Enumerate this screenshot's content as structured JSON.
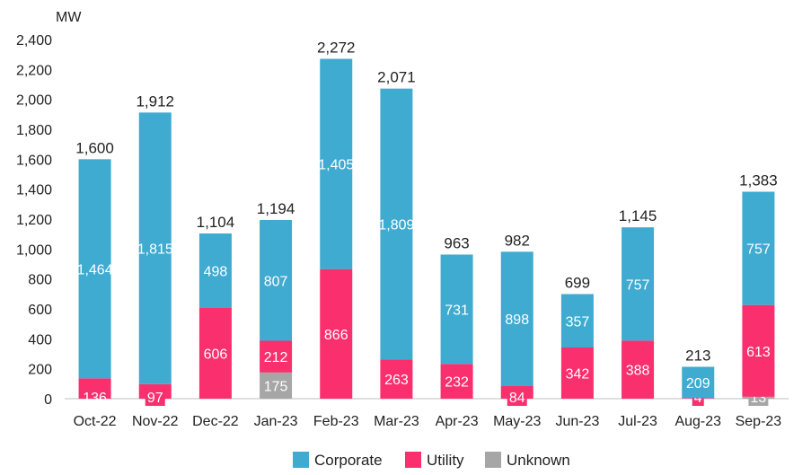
{
  "chart_data": {
    "type": "bar",
    "stacked": true,
    "ylabel": "MW",
    "ylim": [
      0,
      2400
    ],
    "yticks": [
      "0",
      "200",
      "400",
      "600",
      "800",
      "1,000",
      "1,200",
      "1,400",
      "1,600",
      "1,800",
      "2,000",
      "2,200",
      "2,400"
    ],
    "categories": [
      "Oct-22",
      "Nov-22",
      "Dec-22",
      "Jan-23",
      "Feb-23",
      "Mar-23",
      "Apr-23",
      "May-23",
      "Jun-23",
      "Jul-23",
      "Aug-23",
      "Sep-23"
    ],
    "series": [
      {
        "name": "Unknown",
        "color": "#a6a6a6",
        "values": [
          0,
          0,
          0,
          175,
          0,
          0,
          0,
          0,
          0,
          0,
          0,
          13
        ],
        "labels": [
          "",
          "",
          "",
          "175",
          "",
          "",
          "",
          "",
          "",
          "",
          "",
          "13"
        ]
      },
      {
        "name": "Utility",
        "color": "#fa2f6e",
        "values": [
          136,
          97,
          606,
          212,
          866,
          263,
          232,
          84,
          342,
          388,
          4,
          613
        ],
        "labels": [
          "136",
          "97",
          "606",
          "212",
          "866",
          "263",
          "232",
          "84",
          "342",
          "388",
          "4",
          "613"
        ]
      },
      {
        "name": "Corporate",
        "color": "#3fabd1",
        "values": [
          1464,
          1815,
          498,
          807,
          1405,
          1809,
          731,
          898,
          357,
          757,
          209,
          757
        ],
        "labels": [
          "1,464",
          "1,815",
          "498",
          "807",
          "1,405",
          "1,809",
          "731",
          "898",
          "357",
          "757",
          "209",
          "757"
        ]
      }
    ],
    "totals": [
      "1,600",
      "1,912",
      "1,104",
      "1,194",
      "2,272",
      "2,071",
      "963",
      "982",
      "699",
      "1,145",
      "213",
      "1,383"
    ],
    "legend": [
      "Corporate",
      "Utility",
      "Unknown"
    ],
    "legend_position": "bottom",
    "grid": false
  }
}
